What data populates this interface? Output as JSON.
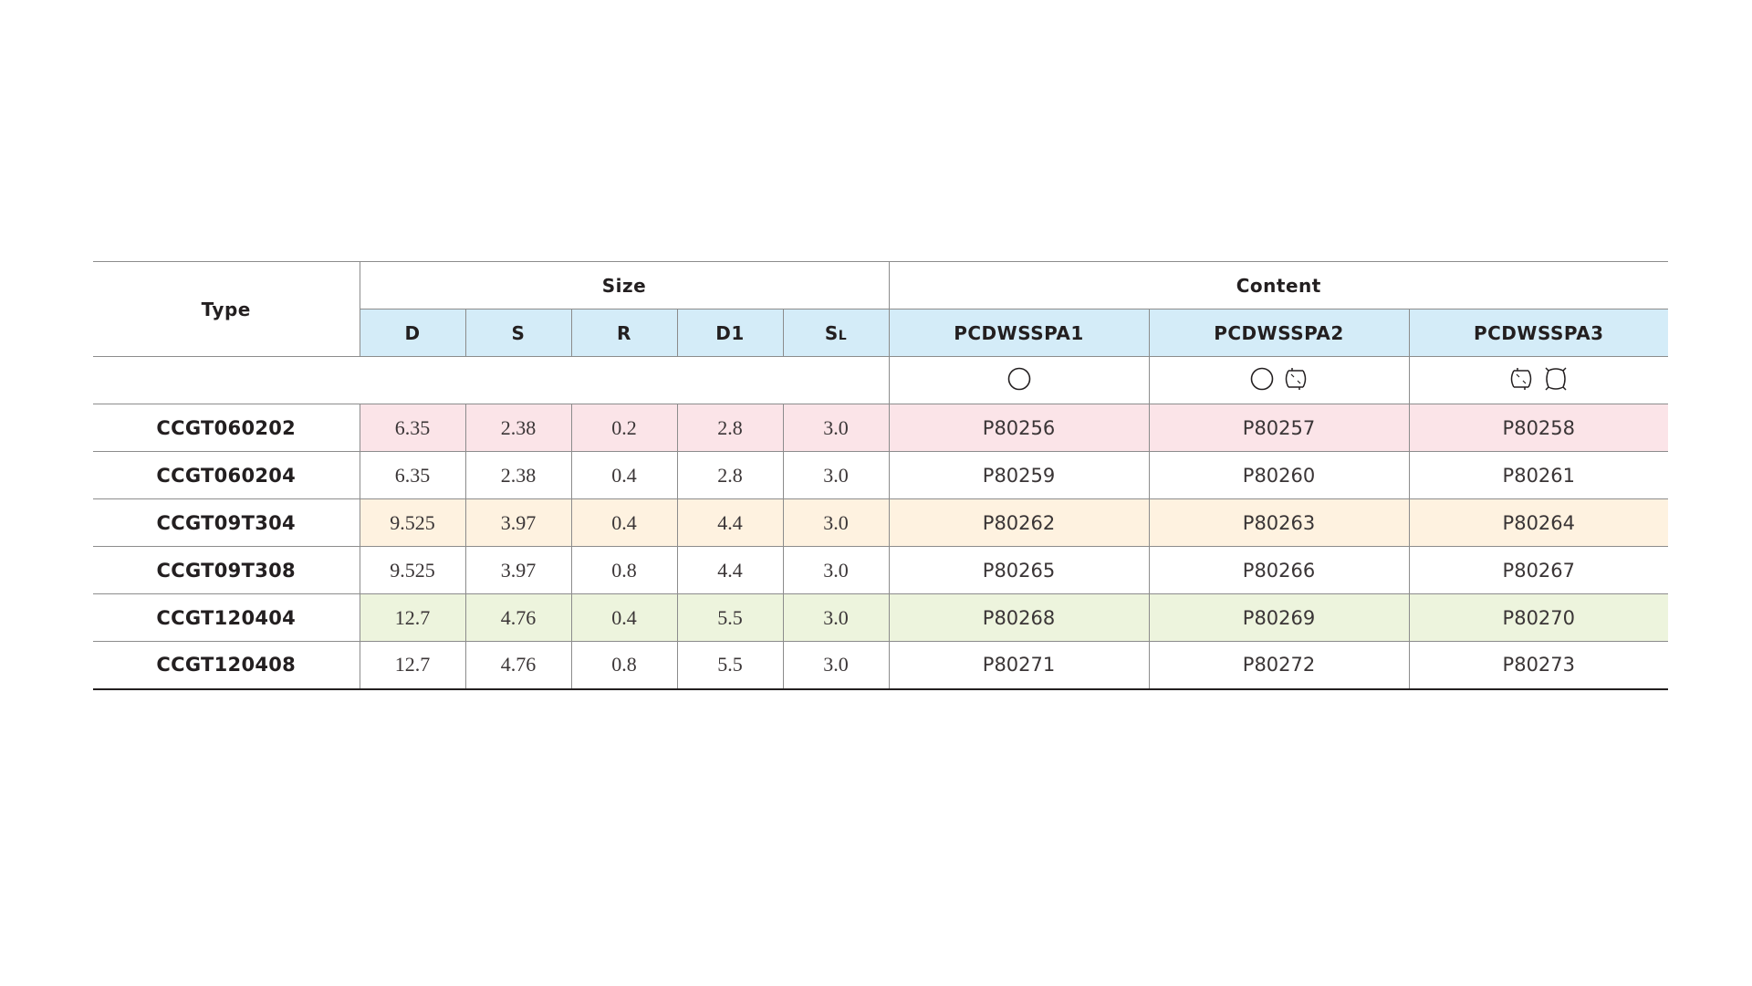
{
  "table": {
    "headers": {
      "type": "Type",
      "size": "Size",
      "content": "Content",
      "size_columns": [
        {
          "main": "D",
          "sub": ""
        },
        {
          "main": "S",
          "sub": ""
        },
        {
          "main": "R",
          "sub": ""
        },
        {
          "main": "D1",
          "sub": ""
        },
        {
          "main": "S",
          "sub": "L"
        }
      ],
      "content_columns": [
        "PCDWSSPA1",
        "PCDWSSPA2",
        "PCDWSSPA3"
      ],
      "content_symbols": [
        [
          "circle-icon"
        ],
        [
          "circle-icon",
          "double-arc-edge-icon"
        ],
        [
          "double-arc-edge-icon",
          "four-arc-edge-icon"
        ]
      ]
    },
    "row_colors": {
      "pink": "#fbe4e8",
      "cream": "#fef2e0",
      "green": "#edf4dd",
      "white": "#ffffff",
      "header_blue": "#d4ecf8"
    },
    "rows": [
      {
        "type": "CCGT060202",
        "size": [
          "6.35",
          "2.38",
          "0.2",
          "2.8",
          "3.0"
        ],
        "content": [
          "P80256",
          "P80257",
          "P80258"
        ],
        "tint": "pink"
      },
      {
        "type": "CCGT060204",
        "size": [
          "6.35",
          "2.38",
          "0.4",
          "2.8",
          "3.0"
        ],
        "content": [
          "P80259",
          "P80260",
          "P80261"
        ],
        "tint": "white"
      },
      {
        "type": "CCGT09T304",
        "size": [
          "9.525",
          "3.97",
          "0.4",
          "4.4",
          "3.0"
        ],
        "content": [
          "P80262",
          "P80263",
          "P80264"
        ],
        "tint": "cream"
      },
      {
        "type": "CCGT09T308",
        "size": [
          "9.525",
          "3.97",
          "0.8",
          "4.4",
          "3.0"
        ],
        "content": [
          "P80265",
          "P80266",
          "P80267"
        ],
        "tint": "white"
      },
      {
        "type": "CCGT120404",
        "size": [
          "12.7",
          "4.76",
          "0.4",
          "5.5",
          "3.0"
        ],
        "content": [
          "P80268",
          "P80269",
          "P80270"
        ],
        "tint": "green"
      },
      {
        "type": "CCGT120408",
        "size": [
          "12.7",
          "4.76",
          "0.8",
          "5.5",
          "3.0"
        ],
        "content": [
          "P80271",
          "P80272",
          "P80273"
        ],
        "tint": "white"
      }
    ]
  }
}
